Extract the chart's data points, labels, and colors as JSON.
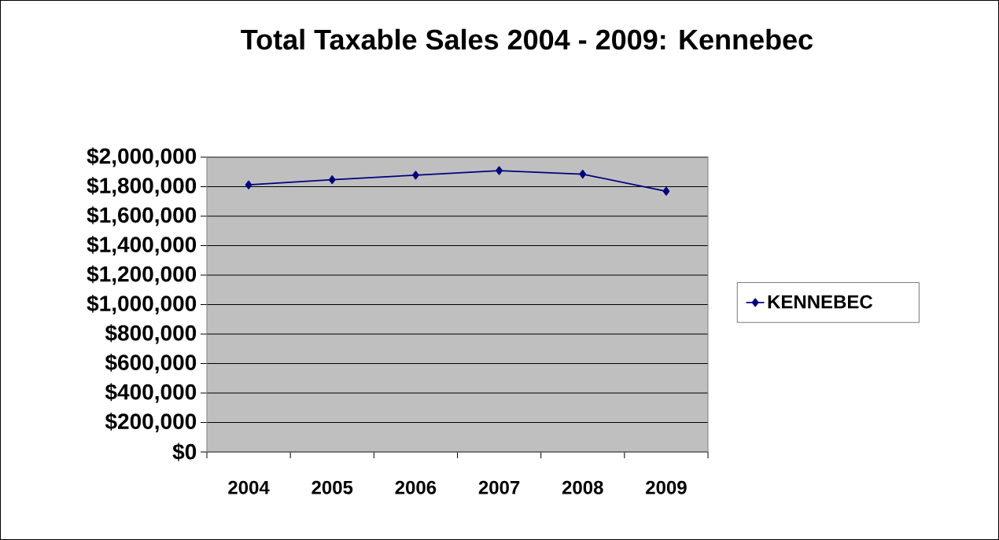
{
  "chart_data": {
    "type": "line",
    "title": "Total Taxable Sales 2004 - 2009: Kennebec",
    "categories": [
      "2004",
      "2005",
      "2006",
      "2007",
      "2008",
      "2009"
    ],
    "series": [
      {
        "name": "KENNEBEC",
        "color": "#000080",
        "values": [
          1812000,
          1847000,
          1878000,
          1909000,
          1885000,
          1769000
        ]
      }
    ],
    "ylim": [
      0,
      2000000
    ],
    "yticks": [
      {
        "value": 0,
        "label": "$0"
      },
      {
        "value": 200000,
        "label": "$200,000"
      },
      {
        "value": 400000,
        "label": "$400,000"
      },
      {
        "value": 600000,
        "label": "$600,000"
      },
      {
        "value": 800000,
        "label": "$800,000"
      },
      {
        "value": 1000000,
        "label": "$1,000,000"
      },
      {
        "value": 1200000,
        "label": "$1,200,000"
      },
      {
        "value": 1400000,
        "label": "$1,400,000"
      },
      {
        "value": 1600000,
        "label": "$1,600,000"
      },
      {
        "value": 1800000,
        "label": "$1,800,000"
      },
      {
        "value": 2000000,
        "label": "$2,000,000"
      }
    ],
    "grid": "y",
    "legend": "right",
    "marker": "diamond",
    "line_style": "solid"
  }
}
